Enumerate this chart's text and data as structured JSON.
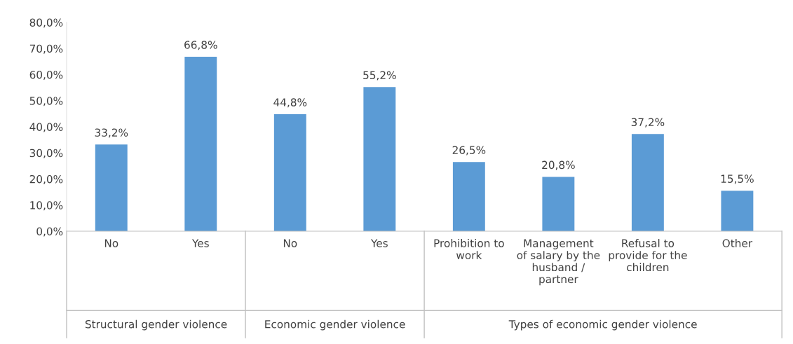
{
  "chart_data": {
    "type": "bar",
    "categories": [
      "No",
      "Yes",
      "No",
      "Yes",
      "Prohibition to\nwork",
      "Management\nof salary by the\nhusband /\npartner",
      "Refusal to\nprovide for the\nchildren",
      "Other"
    ],
    "values": [
      33.2,
      66.8,
      44.8,
      55.2,
      26.5,
      20.8,
      37.2,
      15.5
    ],
    "value_labels": [
      "33,2%",
      "66,8%",
      "44,8%",
      "55,2%",
      "26,5%",
      "20,8%",
      "37,2%",
      "15,5%"
    ],
    "color": "#5b9bd5",
    "ylim": [
      0,
      80
    ],
    "yticks": [
      {
        "value": 0,
        "label": "0,0%"
      },
      {
        "value": 10,
        "label": "10,0%"
      },
      {
        "value": 20,
        "label": "20,0%"
      },
      {
        "value": 30,
        "label": "30,0%"
      },
      {
        "value": 40,
        "label": "40,0%"
      },
      {
        "value": 50,
        "label": "50,0%"
      },
      {
        "value": 60,
        "label": "60,0%"
      },
      {
        "value": 70,
        "label": "70,0%"
      },
      {
        "value": 80,
        "label": "80,0%"
      }
    ],
    "annotations": [
      "Structural gender violence",
      "Economic gender violence",
      "Types of economic gender violence"
    ],
    "grid": false,
    "legend": false
  }
}
